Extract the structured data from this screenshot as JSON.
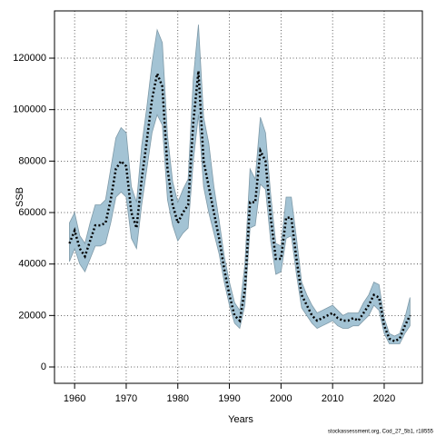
{
  "chart_data": {
    "type": "line",
    "x_label": "Years",
    "y_label": "SSB",
    "footnote": "stockassessment.org, Cod_27_5b1, r18555",
    "x": [
      1959,
      1960,
      1961,
      1962,
      1963,
      1964,
      1965,
      1966,
      1967,
      1968,
      1969,
      1970,
      1971,
      1972,
      1973,
      1974,
      1975,
      1976,
      1977,
      1978,
      1979,
      1980,
      1981,
      1982,
      1983,
      1984,
      1985,
      1986,
      1987,
      1988,
      1989,
      1990,
      1991,
      1992,
      1993,
      1994,
      1995,
      1996,
      1997,
      1998,
      1999,
      2000,
      2001,
      2002,
      2003,
      2004,
      2005,
      2006,
      2007,
      2008,
      2009,
      2010,
      2011,
      2012,
      2013,
      2014,
      2015,
      2016,
      2017,
      2018,
      2019,
      2020,
      2021,
      2022,
      2023,
      2024,
      2025
    ],
    "values": [
      48000,
      53000,
      46000,
      43000,
      49000,
      55000,
      55000,
      56000,
      65000,
      77000,
      80000,
      78000,
      60000,
      54000,
      73000,
      88000,
      104000,
      114000,
      109000,
      77000,
      63000,
      56000,
      60000,
      63000,
      95000,
      115000,
      80000,
      70000,
      60000,
      50000,
      38000,
      28000,
      20000,
      18000,
      30000,
      64000,
      64000,
      84000,
      80000,
      58000,
      42000,
      42000,
      58000,
      58000,
      42000,
      28000,
      24000,
      20000,
      18000,
      19000,
      20000,
      21000,
      19000,
      18000,
      18000,
      19000,
      18000,
      21000,
      24000,
      28000,
      27000,
      16000,
      11000,
      10000,
      11000,
      16000,
      20000
    ],
    "lower": [
      41000,
      46000,
      40000,
      37000,
      42000,
      47000,
      47000,
      48000,
      56000,
      66000,
      68000,
      66000,
      50000,
      46000,
      63000,
      77000,
      91000,
      98000,
      94000,
      65000,
      55000,
      49000,
      52000,
      54000,
      80000,
      98000,
      70000,
      60000,
      52000,
      44000,
      33000,
      24000,
      17000,
      15000,
      24000,
      54000,
      55000,
      71000,
      69000,
      49000,
      36000,
      37000,
      50000,
      51000,
      36000,
      23000,
      20000,
      17000,
      15000,
      16000,
      17000,
      18000,
      16000,
      15000,
      15000,
      16000,
      16000,
      18000,
      20000,
      24000,
      22000,
      13000,
      9000,
      9000,
      9000,
      13000,
      16000
    ],
    "upper": [
      56000,
      60000,
      51000,
      48000,
      56000,
      63000,
      63000,
      65000,
      77000,
      89000,
      93000,
      91000,
      70000,
      64000,
      86000,
      101000,
      118000,
      131000,
      126000,
      90000,
      72000,
      64000,
      69000,
      73000,
      112000,
      133000,
      97000,
      87000,
      70000,
      57000,
      43000,
      33000,
      25000,
      22000,
      40000,
      77000,
      73000,
      97000,
      91000,
      67000,
      48000,
      47000,
      66000,
      66000,
      50000,
      33000,
      28000,
      24000,
      21000,
      22000,
      23000,
      24000,
      22000,
      20000,
      21000,
      21000,
      21000,
      25000,
      28000,
      33000,
      32000,
      19000,
      13000,
      12000,
      13000,
      19000,
      27000
    ],
    "line_color": "#000000",
    "band_color": "#a3c3d4",
    "band_edge": "#7f9aa8",
    "xlim": [
      1956.1,
      2027.4
    ],
    "ylim": [
      -6350,
      138360
    ],
    "xticks": [
      1960,
      1970,
      1980,
      1990,
      2000,
      2010,
      2020
    ],
    "yticks": [
      0,
      20000,
      40000,
      60000,
      80000,
      100000,
      120000
    ],
    "grid": true
  }
}
